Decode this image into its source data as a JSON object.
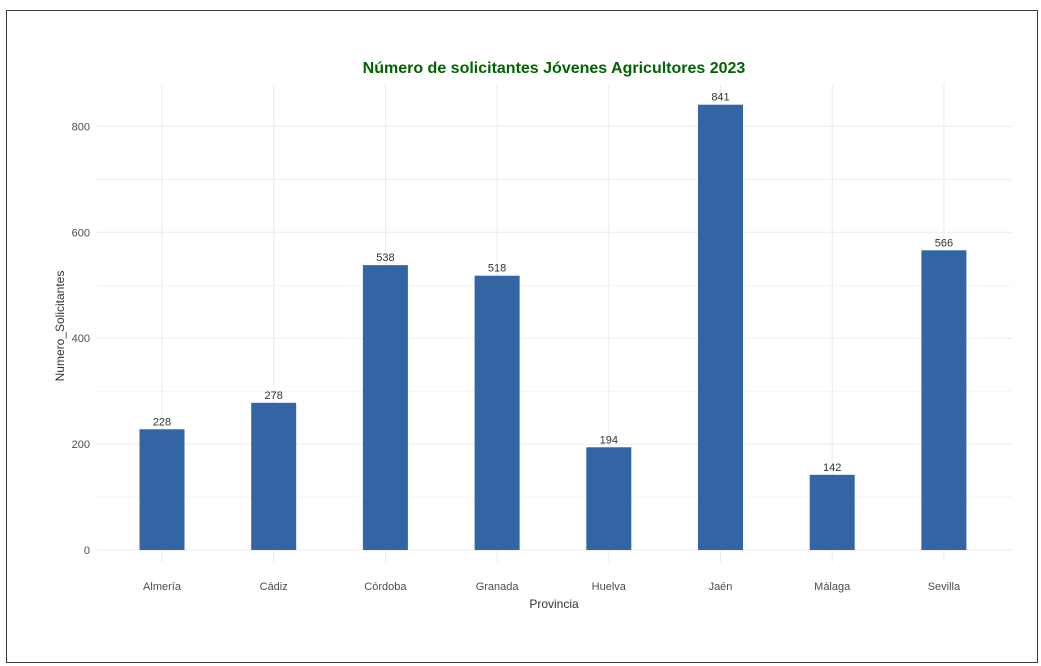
{
  "chart_data": {
    "type": "bar",
    "title": "Número de solicitantes Jóvenes Agricultores 2023",
    "xlabel": "Provincia",
    "ylabel": "Numero_Solicitantes",
    "categories": [
      "Almería",
      "Cádiz",
      "Córdoba",
      "Granada",
      "Huelva",
      "Jaén",
      "Málaga",
      "Sevilla"
    ],
    "values": [
      228,
      278,
      538,
      518,
      194,
      841,
      142,
      566
    ],
    "data_labels": [
      "228",
      "278",
      "538",
      "518",
      "194",
      "841",
      "142",
      "566"
    ],
    "y_ticks": [
      "0",
      "200",
      "400",
      "600",
      "800"
    ],
    "ylim": [
      0,
      883
    ],
    "grid": true,
    "colors": {
      "bar": "#3365a5",
      "title": "#006400",
      "grid": "#ebebeb"
    }
  }
}
